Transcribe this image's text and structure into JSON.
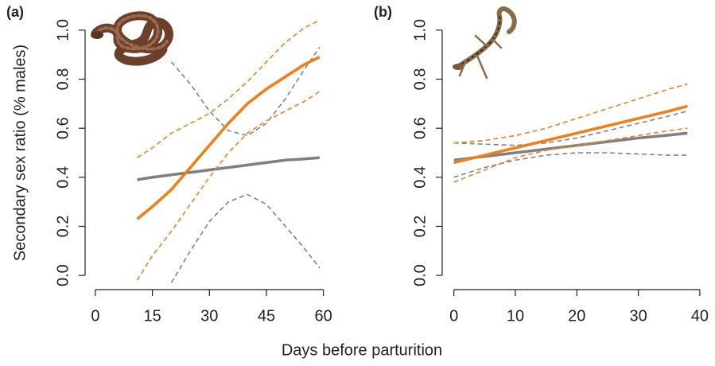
{
  "chart_data": [
    {
      "type": "line",
      "panel_label": "(a)",
      "ylabel": "Secondary sex ratio (% males)",
      "x": [
        11,
        15,
        20,
        25,
        30,
        35,
        40,
        45,
        50,
        55,
        59
      ],
      "xlim": [
        -2.7,
        63
      ],
      "xticks": [
        0,
        15,
        30,
        45,
        60
      ],
      "ylim": [
        -0.058,
        1.058
      ],
      "yticks": [
        {
          "value": 0,
          "label": "0.0"
        },
        0.2,
        0.4,
        0.6,
        0.8,
        {
          "value": 1,
          "label": "1.0"
        }
      ],
      "series": [
        {
          "color": "#808080",
          "dashed": false,
          "values": [
            0.39,
            0.4,
            0.41,
            0.42,
            0.43,
            0.44,
            0.45,
            0.46,
            0.47,
            0.475,
            0.48
          ]
        },
        {
          "color": "#808080",
          "dashed": true,
          "values": [
            null,
            null,
            0.87,
            0.78,
            0.67,
            0.59,
            0.57,
            0.62,
            0.72,
            0.84,
            0.93
          ]
        },
        {
          "color": "#808080",
          "dashed": true,
          "values": [
            null,
            null,
            -0.03,
            0.1,
            0.22,
            0.3,
            0.33,
            0.29,
            0.2,
            0.11,
            0.03
          ]
        },
        {
          "color": "#f07f1a",
          "dashed": false,
          "values": [
            0.23,
            0.28,
            0.35,
            0.44,
            0.53,
            0.62,
            0.7,
            0.76,
            0.81,
            0.86,
            0.89
          ]
        },
        {
          "color": "#f07f1a",
          "dashed": true,
          "values": [
            0.48,
            0.52,
            0.58,
            0.62,
            0.66,
            0.72,
            0.79,
            0.87,
            0.95,
            1.01,
            1.04
          ]
        },
        {
          "color": "#f07f1a",
          "dashed": true,
          "values": [
            -0.02,
            0.08,
            0.18,
            0.29,
            0.4,
            0.5,
            0.58,
            0.63,
            0.67,
            0.71,
            0.75
          ]
        }
      ]
    },
    {
      "type": "line",
      "panel_label": "(b)",
      "x": [
        0,
        5,
        10,
        15,
        20,
        25,
        30,
        35,
        38
      ],
      "xlim": [
        -1.9,
        41.5
      ],
      "xticks": [
        0,
        10,
        20,
        30,
        40
      ],
      "ylim": [
        -0.058,
        1.058
      ],
      "yticks": [
        {
          "value": 0,
          "label": "0.0"
        },
        0.2,
        0.4,
        0.6,
        0.8,
        {
          "value": 1,
          "label": "1.0"
        }
      ],
      "series": [
        {
          "color": "#808080",
          "dashed": false,
          "values": [
            0.47,
            0.485,
            0.5,
            0.515,
            0.53,
            0.545,
            0.56,
            0.572,
            0.58
          ]
        },
        {
          "color": "#808080",
          "dashed": true,
          "values": [
            0.54,
            0.535,
            0.53,
            0.54,
            0.56,
            0.59,
            0.62,
            0.65,
            0.67
          ]
        },
        {
          "color": "#808080",
          "dashed": true,
          "values": [
            0.4,
            0.44,
            0.47,
            0.49,
            0.5,
            0.5,
            0.495,
            0.49,
            0.49
          ]
        },
        {
          "color": "#f07f1a",
          "dashed": false,
          "values": [
            0.46,
            0.49,
            0.52,
            0.55,
            0.58,
            0.61,
            0.64,
            0.67,
            0.69
          ]
        },
        {
          "color": "#f07f1a",
          "dashed": true,
          "values": [
            0.54,
            0.55,
            0.57,
            0.6,
            0.64,
            0.68,
            0.72,
            0.76,
            0.78
          ]
        },
        {
          "color": "#f07f1a",
          "dashed": true,
          "values": [
            0.38,
            0.43,
            0.48,
            0.51,
            0.53,
            0.55,
            0.57,
            0.59,
            0.6
          ]
        }
      ]
    }
  ],
  "xlabel": "Days before parturition"
}
